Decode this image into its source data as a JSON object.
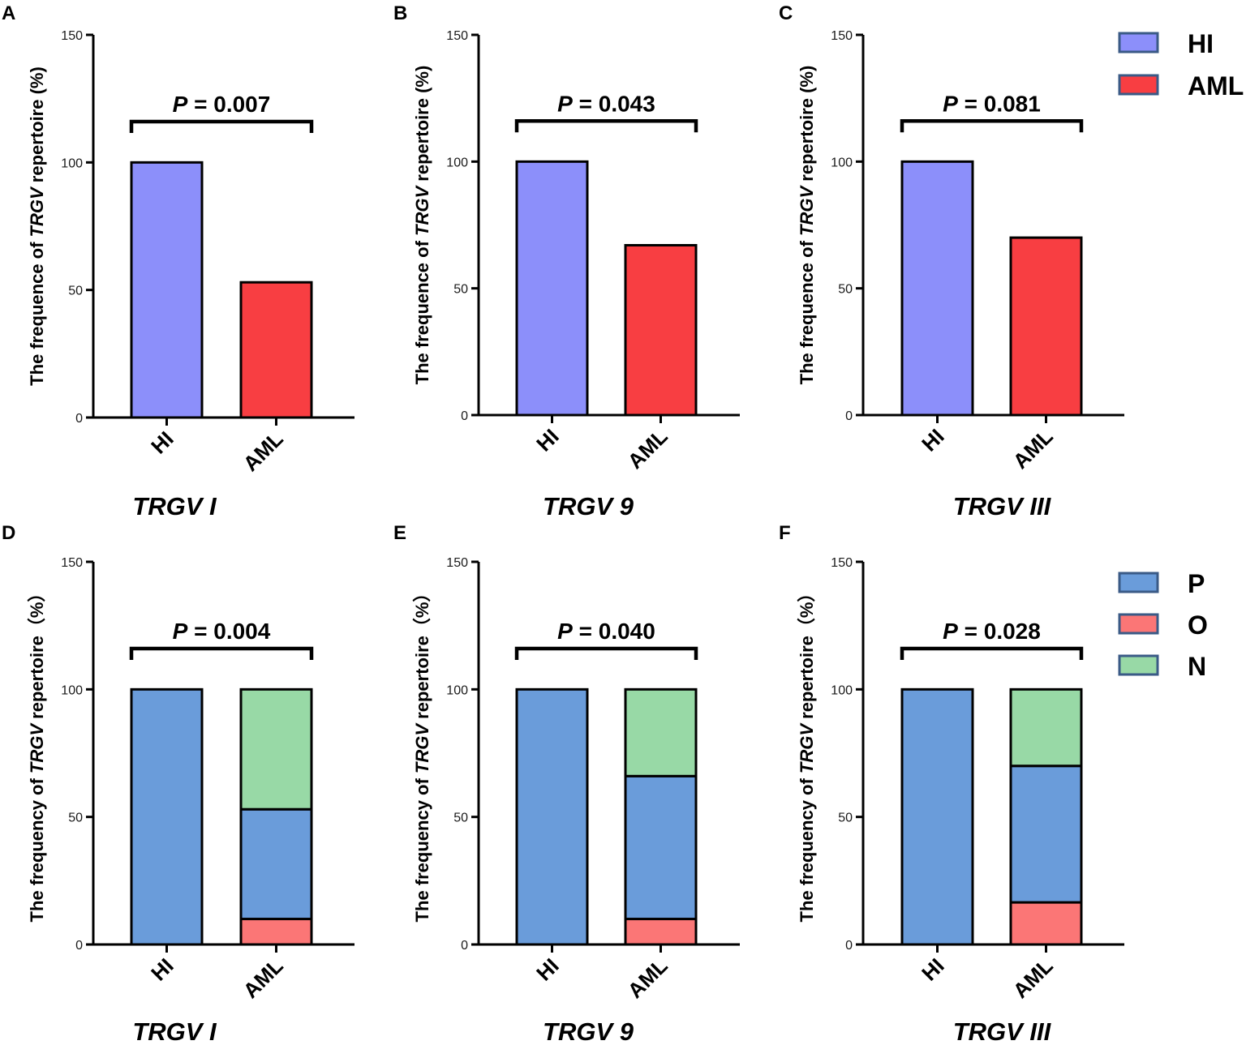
{
  "legends": [
    {
      "items": [
        {
          "label": "HI",
          "color": "#8C8FFA"
        },
        {
          "label": "AML",
          "color": "#F83E42"
        }
      ]
    },
    {
      "items": [
        {
          "label": "P",
          "color": "#6A9CDA"
        },
        {
          "label": "O",
          "color": "#FB7676"
        },
        {
          "label": "N",
          "color": "#98D9A6"
        }
      ]
    }
  ],
  "chart_data": [
    {
      "panel": "A",
      "type": "bar",
      "ylabel": {
        "pre": "The frequence of ",
        "ital": "TRGV",
        "post": " repertoire (%)"
      },
      "ylim": [
        0,
        150
      ],
      "yticks": [
        0,
        50,
        100,
        150
      ],
      "categories": [
        "HI",
        "AML"
      ],
      "values": [
        100,
        53
      ],
      "colors": [
        "#8C8FFA",
        "#F83E42"
      ],
      "pvalue": {
        "p": "P",
        "rest": " = 0.007"
      },
      "subtitle": "TRGV I"
    },
    {
      "panel": "B",
      "type": "bar",
      "ylabel": {
        "pre": "The frequence of ",
        "ital": "TRGV",
        "post": " repertoire (%)"
      },
      "ylim": [
        0,
        150
      ],
      "yticks": [
        0,
        50,
        100,
        150
      ],
      "categories": [
        "HI",
        "AML"
      ],
      "values": [
        100,
        67
      ],
      "colors": [
        "#8C8FFA",
        "#F83E42"
      ],
      "pvalue": {
        "p": "P",
        "rest": " = 0.043"
      },
      "subtitle": "TRGV 9"
    },
    {
      "panel": "C",
      "type": "bar",
      "ylabel": {
        "pre": "The frequence of ",
        "ital": "TRGV",
        "post": " repertoire (%)"
      },
      "ylim": [
        0,
        150
      ],
      "yticks": [
        0,
        50,
        100,
        150
      ],
      "categories": [
        "HI",
        "AML"
      ],
      "values": [
        100,
        70
      ],
      "colors": [
        "#8C8FFA",
        "#F83E42"
      ],
      "pvalue": {
        "p": "P",
        "rest": " = 0.081"
      },
      "subtitle": "TRGV III"
    },
    {
      "panel": "D",
      "type": "bar",
      "stacked": true,
      "ylabel": {
        "pre": "The frequency of ",
        "ital": "TRGV",
        "post": " repertoire（%）"
      },
      "ylim": [
        0,
        150
      ],
      "yticks": [
        0,
        50,
        100,
        150
      ],
      "categories": [
        "HI",
        "AML"
      ],
      "series": [
        {
          "name": "O",
          "color": "#FB7676",
          "values": [
            0,
            10
          ]
        },
        {
          "name": "P",
          "color": "#6A9CDA",
          "values": [
            100,
            43
          ]
        },
        {
          "name": "N",
          "color": "#98D9A6",
          "values": [
            0,
            47
          ]
        }
      ],
      "pvalue": {
        "p": "P",
        "rest": " = 0.004"
      },
      "subtitle": "TRGV I"
    },
    {
      "panel": "E",
      "type": "bar",
      "stacked": true,
      "ylabel": {
        "pre": "The frequency of ",
        "ital": "TRGV",
        "post": " repertoire（%）"
      },
      "ylim": [
        0,
        150
      ],
      "yticks": [
        0,
        50,
        100,
        150
      ],
      "categories": [
        "HI",
        "AML"
      ],
      "series": [
        {
          "name": "O",
          "color": "#FB7676",
          "values": [
            0,
            10
          ]
        },
        {
          "name": "P",
          "color": "#6A9CDA",
          "values": [
            100,
            56
          ]
        },
        {
          "name": "N",
          "color": "#98D9A6",
          "values": [
            0,
            34
          ]
        }
      ],
      "pvalue": {
        "p": "P",
        "rest": " = 0.040"
      },
      "subtitle": "TRGV 9"
    },
    {
      "panel": "F",
      "type": "bar",
      "stacked": true,
      "ylabel": {
        "pre": "The frequency of ",
        "ital": "TRGV",
        "post": " repertoire（%）"
      },
      "ylim": [
        0,
        150
      ],
      "yticks": [
        0,
        50,
        100,
        150
      ],
      "categories": [
        "HI",
        "AML"
      ],
      "series": [
        {
          "name": "O",
          "color": "#FB7676",
          "values": [
            0,
            16.5
          ]
        },
        {
          "name": "P",
          "color": "#6A9CDA",
          "values": [
            100,
            53.5
          ]
        },
        {
          "name": "N",
          "color": "#98D9A6",
          "values": [
            0,
            30
          ]
        }
      ],
      "pvalue": {
        "p": "P",
        "rest": " = 0.028"
      },
      "subtitle": "TRGV III"
    }
  ]
}
